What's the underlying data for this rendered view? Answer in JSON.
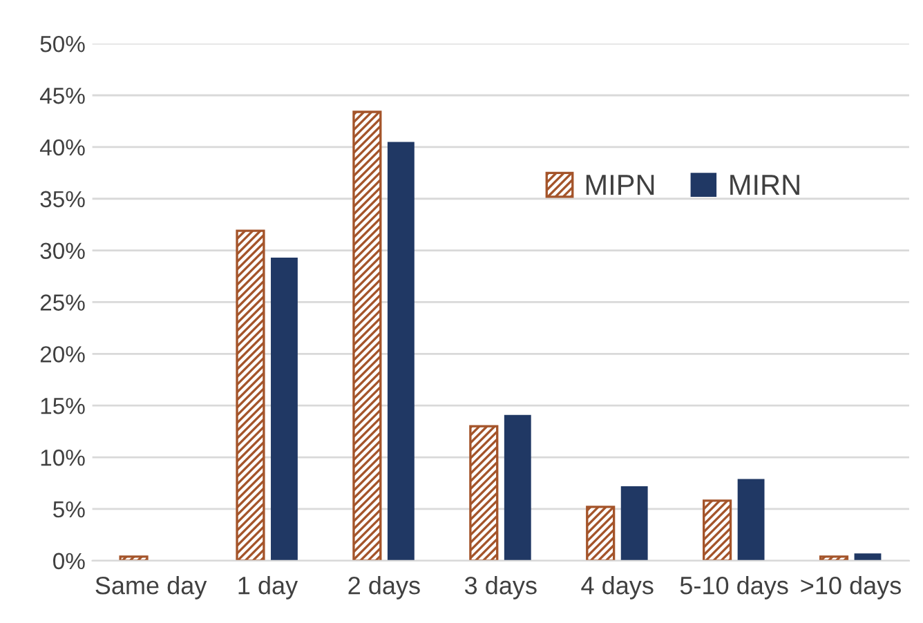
{
  "chart_data": {
    "type": "bar",
    "categories": [
      "Same day",
      "1 day",
      "2 days",
      "3 days",
      "4 days",
      "5-10 days",
      ">10 days"
    ],
    "series": [
      {
        "name": "MIPN",
        "color": "#a4542a",
        "values": [
          0.4,
          31.9,
          43.4,
          13.0,
          5.2,
          5.8,
          0.4
        ]
      },
      {
        "name": "MIRN",
        "color": "#203864",
        "values": [
          0,
          29.3,
          40.5,
          14.1,
          7.2,
          7.9,
          0.7
        ]
      }
    ],
    "ylim": [
      0,
      50
    ],
    "yticks": [
      {
        "value": 0,
        "label": "0%"
      },
      {
        "value": 5,
        "label": "5%"
      },
      {
        "value": 10,
        "label": "10%"
      },
      {
        "value": 15,
        "label": "15%"
      },
      {
        "value": 20,
        "label": "20%"
      },
      {
        "value": 25,
        "label": "25%"
      },
      {
        "value": 30,
        "label": "30%"
      },
      {
        "value": 35,
        "label": "35%"
      },
      {
        "value": 40,
        "label": "40%"
      },
      {
        "value": 45,
        "label": "45%"
      },
      {
        "value": 50,
        "label": "50%"
      }
    ],
    "grid": "y",
    "legend": "top right"
  }
}
